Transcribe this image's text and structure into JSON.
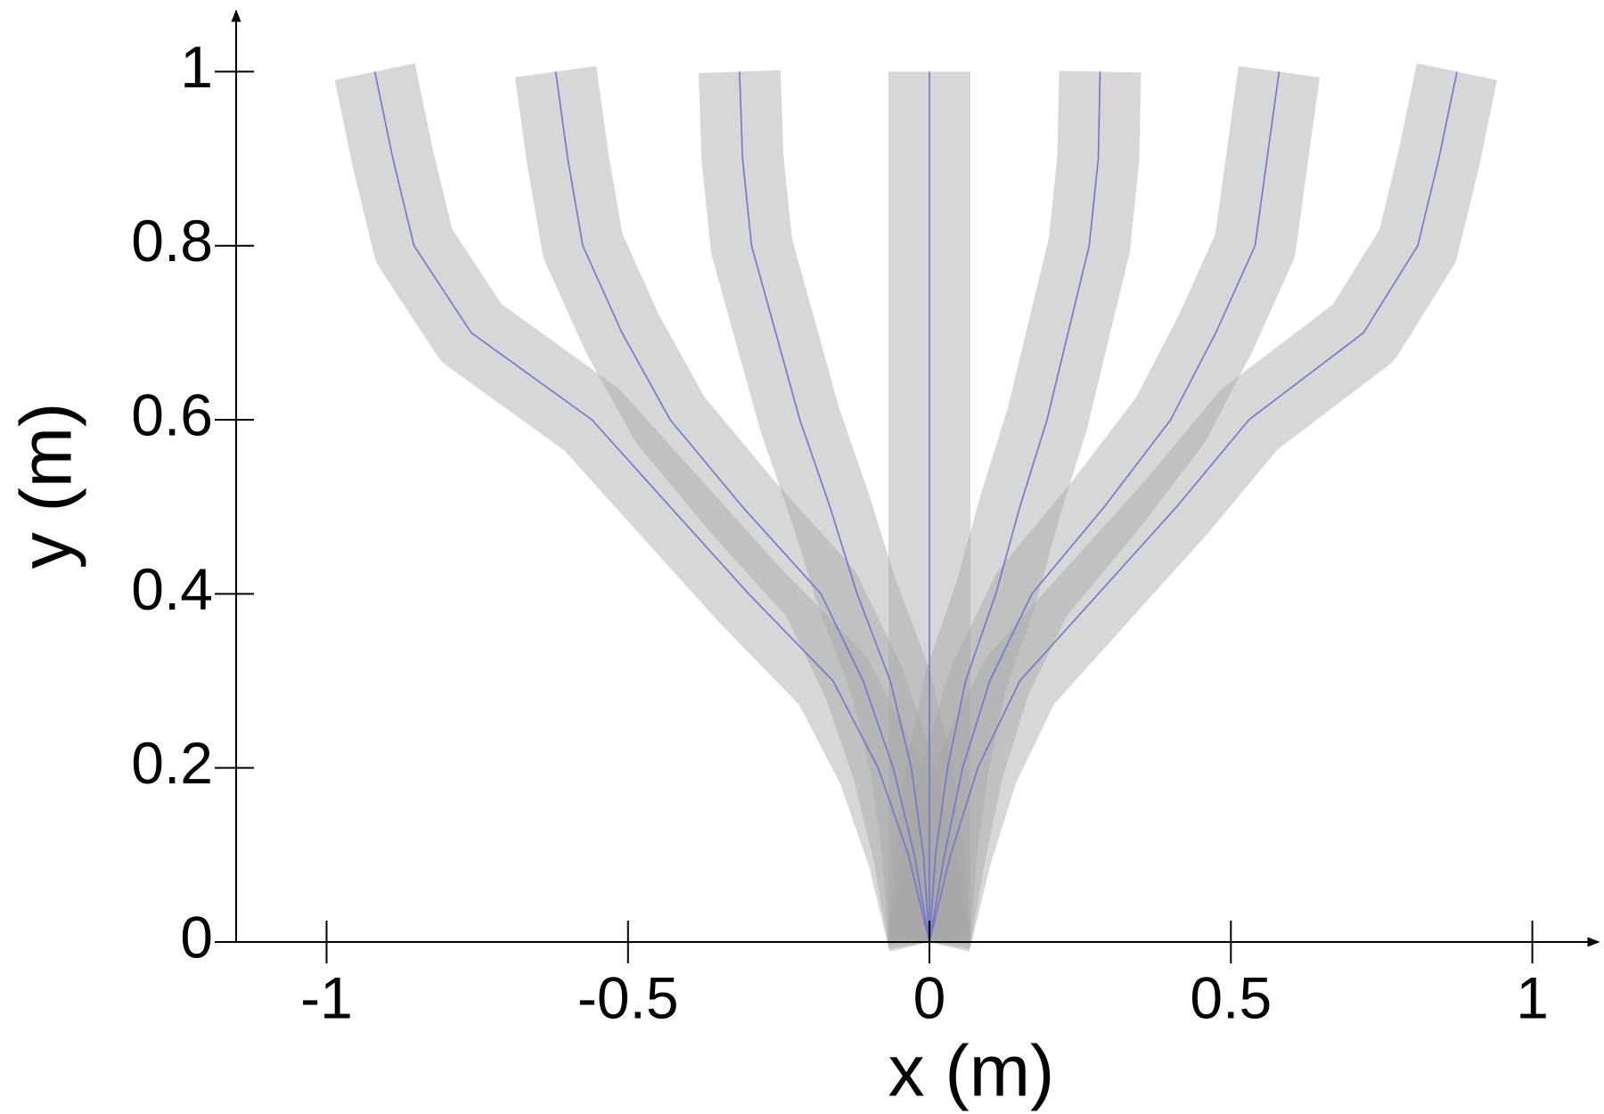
{
  "chart_data": {
    "type": "line",
    "xlabel": "x (m)",
    "ylabel": "y (m)",
    "xlim": [
      -1.15,
      1.11
    ],
    "ylim": [
      0,
      1.07
    ],
    "xticks": [
      -1,
      -0.5,
      0,
      0.5,
      1
    ],
    "yticks": [
      0,
      0.2,
      0.4,
      0.6,
      0.8,
      1
    ],
    "series": [
      {
        "color": "#7474cc",
        "x": [
          0,
          -0.035,
          -0.085,
          -0.16,
          -0.3,
          -0.43,
          -0.56,
          -0.76,
          -0.855,
          -0.89,
          -0.92
        ],
        "values": [
          0,
          0.1,
          0.2,
          0.3,
          0.4,
          0.5,
          0.6,
          0.7,
          0.8,
          0.9,
          1
        ]
      },
      {
        "color": "#7474cc",
        "x": [
          0,
          -0.025,
          -0.06,
          -0.11,
          -0.18,
          -0.31,
          -0.43,
          -0.51,
          -0.575,
          -0.6,
          -0.62
        ],
        "values": [
          0,
          0.1,
          0.2,
          0.3,
          0.4,
          0.5,
          0.6,
          0.7,
          0.8,
          0.9,
          1
        ]
      },
      {
        "color": "#7474cc",
        "x": [
          0,
          -0.01,
          -0.03,
          -0.065,
          -0.12,
          -0.165,
          -0.215,
          -0.255,
          -0.295,
          -0.31,
          -0.315
        ],
        "values": [
          0,
          0.1,
          0.2,
          0.3,
          0.4,
          0.5,
          0.6,
          0.7,
          0.8,
          0.9,
          1
        ]
      },
      {
        "color": "#7474cc",
        "x": [
          0,
          0,
          0,
          0,
          0,
          0,
          0,
          0,
          0,
          0,
          0
        ],
        "values": [
          0,
          0.1,
          0.2,
          0.3,
          0.4,
          0.5,
          0.6,
          0.7,
          0.8,
          0.9,
          1
        ]
      },
      {
        "color": "#7474cc",
        "x": [
          0,
          0.01,
          0.03,
          0.06,
          0.11,
          0.15,
          0.195,
          0.23,
          0.265,
          0.28,
          0.283
        ],
        "values": [
          0,
          0.1,
          0.2,
          0.3,
          0.4,
          0.5,
          0.6,
          0.7,
          0.8,
          0.9,
          1
        ]
      },
      {
        "color": "#7474cc",
        "x": [
          0,
          0.025,
          0.055,
          0.1,
          0.17,
          0.29,
          0.4,
          0.475,
          0.54,
          0.56,
          0.58
        ],
        "values": [
          0,
          0.1,
          0.2,
          0.3,
          0.4,
          0.5,
          0.6,
          0.7,
          0.8,
          0.9,
          1
        ]
      },
      {
        "color": "#7474cc",
        "x": [
          0,
          0.035,
          0.08,
          0.15,
          0.28,
          0.41,
          0.53,
          0.72,
          0.81,
          0.845,
          0.875
        ],
        "values": [
          0,
          0.1,
          0.2,
          0.3,
          0.4,
          0.5,
          0.6,
          0.7,
          0.8,
          0.9,
          1
        ]
      }
    ]
  }
}
